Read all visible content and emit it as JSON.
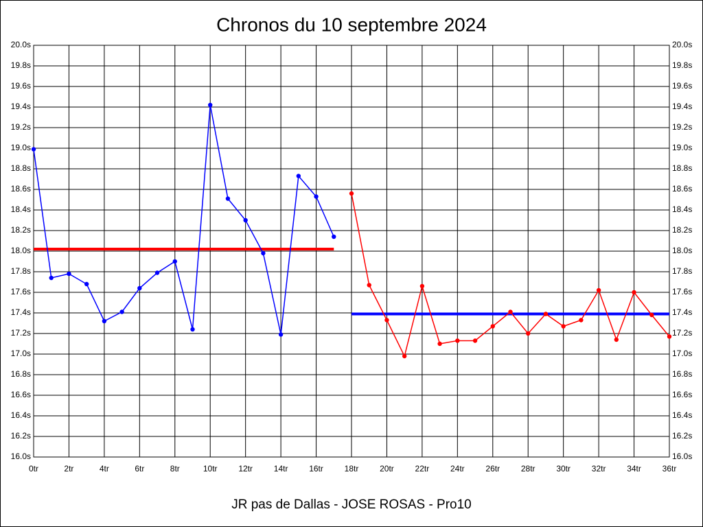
{
  "chart_data": {
    "type": "line",
    "title": "Chronos du 10 septembre 2024",
    "xlabel": "JR pas de Dallas - JOSE ROSAS - Pro10",
    "xlim": [
      0,
      36
    ],
    "ylim": [
      16.0,
      20.0
    ],
    "grid": true,
    "xticks": [
      {
        "value": 0,
        "label": "0tr"
      },
      {
        "value": 2,
        "label": "2tr"
      },
      {
        "value": 4,
        "label": "4tr"
      },
      {
        "value": 6,
        "label": "6tr"
      },
      {
        "value": 8,
        "label": "8tr"
      },
      {
        "value": 10,
        "label": "10tr"
      },
      {
        "value": 12,
        "label": "12tr"
      },
      {
        "value": 14,
        "label": "14tr"
      },
      {
        "value": 16,
        "label": "16tr"
      },
      {
        "value": 18,
        "label": "18tr"
      },
      {
        "value": 20,
        "label": "20tr"
      },
      {
        "value": 22,
        "label": "22tr"
      },
      {
        "value": 24,
        "label": "24tr"
      },
      {
        "value": 26,
        "label": "26tr"
      },
      {
        "value": 28,
        "label": "28tr"
      },
      {
        "value": 30,
        "label": "30tr"
      },
      {
        "value": 32,
        "label": "32tr"
      },
      {
        "value": 34,
        "label": "34tr"
      },
      {
        "value": 36,
        "label": "36tr"
      }
    ],
    "yticks": [
      {
        "value": 16.0,
        "label": "16.0s"
      },
      {
        "value": 16.2,
        "label": "16.2s"
      },
      {
        "value": 16.4,
        "label": "16.4s"
      },
      {
        "value": 16.6,
        "label": "16.6s"
      },
      {
        "value": 16.8,
        "label": "16.8s"
      },
      {
        "value": 17.0,
        "label": "17.0s"
      },
      {
        "value": 17.2,
        "label": "17.2s"
      },
      {
        "value": 17.4,
        "label": "17.4s"
      },
      {
        "value": 17.6,
        "label": "17.6s"
      },
      {
        "value": 17.8,
        "label": "17.8s"
      },
      {
        "value": 18.0,
        "label": "18.0s"
      },
      {
        "value": 18.2,
        "label": "18.2s"
      },
      {
        "value": 18.4,
        "label": "18.4s"
      },
      {
        "value": 18.6,
        "label": "18.6s"
      },
      {
        "value": 18.8,
        "label": "18.8s"
      },
      {
        "value": 19.0,
        "label": "19.0s"
      },
      {
        "value": 19.2,
        "label": "19.2s"
      },
      {
        "value": 19.4,
        "label": "19.4s"
      },
      {
        "value": 19.6,
        "label": "19.6s"
      },
      {
        "value": 19.8,
        "label": "19.8s"
      },
      {
        "value": 20.0,
        "label": "20.0s"
      }
    ],
    "series": [
      {
        "color": "#0000ff",
        "x": [
          0,
          1,
          2,
          3,
          4,
          5,
          6,
          7,
          8,
          9,
          10,
          11,
          12,
          13,
          14,
          15,
          16,
          17
        ],
        "values": [
          18.99,
          17.74,
          17.78,
          17.68,
          17.32,
          17.41,
          17.64,
          17.79,
          17.9,
          17.24,
          19.42,
          18.51,
          18.3,
          17.98,
          17.19,
          18.73,
          18.53,
          18.14
        ]
      },
      {
        "color": "#ff0000",
        "x": [
          18,
          19,
          20,
          21,
          22,
          23,
          24,
          25,
          26,
          27,
          28,
          29,
          30,
          31,
          32,
          33,
          34,
          35,
          36
        ],
        "values": [
          18.56,
          17.67,
          17.33,
          16.98,
          17.66,
          17.1,
          17.13,
          17.13,
          17.27,
          17.41,
          17.2,
          17.39,
          17.27,
          17.33,
          17.62,
          17.14,
          17.6,
          17.38,
          17.17
        ]
      }
    ],
    "reference_lines": [
      {
        "value": 18.02,
        "x": [
          0,
          17
        ],
        "color": "#ff0000"
      },
      {
        "value": 17.39,
        "x": [
          18,
          36
        ],
        "color": "#0000ff"
      }
    ]
  }
}
